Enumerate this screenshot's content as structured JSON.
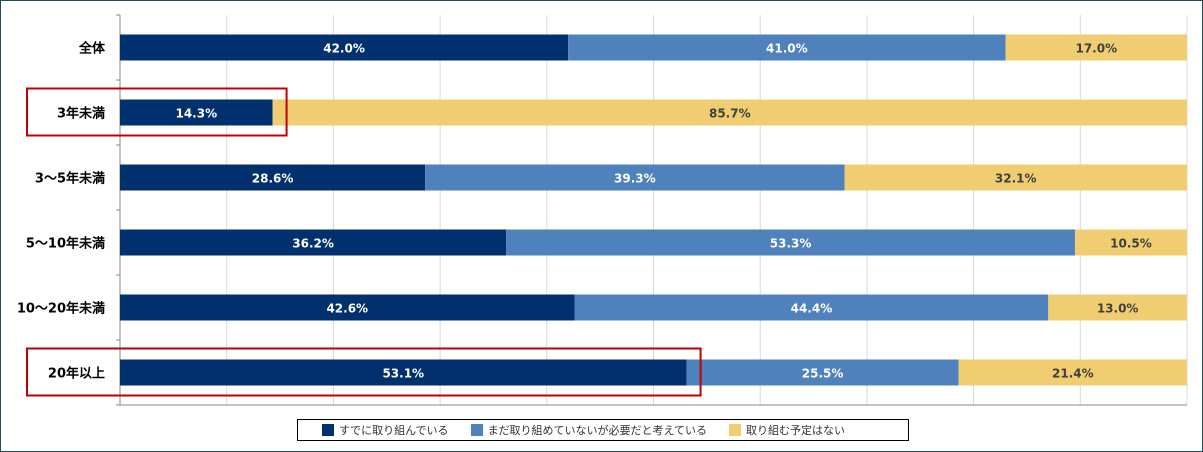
{
  "chart_data": {
    "type": "bar",
    "orientation": "horizontal",
    "stacked": true,
    "percent": true,
    "xlim": [
      0,
      100
    ],
    "grid": true,
    "legend_position": "bottom",
    "categories": [
      "全体",
      "3年未満",
      "3～5年未満",
      "5～10年未満",
      "10～20年未満",
      "20年以上"
    ],
    "series": [
      {
        "name": "すでに取り組んでいる",
        "color": "#00316e",
        "values": [
          42.0,
          14.3,
          28.6,
          36.2,
          42.6,
          53.1
        ],
        "labels": [
          "42.0%",
          "14.3%",
          "28.6%",
          "36.2%",
          "42.6%",
          "53.1%"
        ]
      },
      {
        "name": "まだ取り組めていないが必要だと考えている",
        "color": "#4f81bd",
        "values": [
          41.0,
          0,
          39.3,
          53.3,
          44.4,
          25.5
        ],
        "labels": [
          "41.0%",
          "",
          "39.3%",
          "53.3%",
          "44.4%",
          "25.5%"
        ]
      },
      {
        "name": "取り組む予定はない",
        "color": "#f0cd71",
        "values": [
          17.0,
          85.7,
          32.1,
          10.5,
          13.0,
          21.4
        ],
        "labels": [
          "17.0%",
          "85.7%",
          "32.1%",
          "10.5%",
          "13.0%",
          "21.4%"
        ]
      }
    ],
    "highlighted_categories": [
      "3年未満",
      "20年以上"
    ],
    "highlight_color": "#c00000"
  }
}
